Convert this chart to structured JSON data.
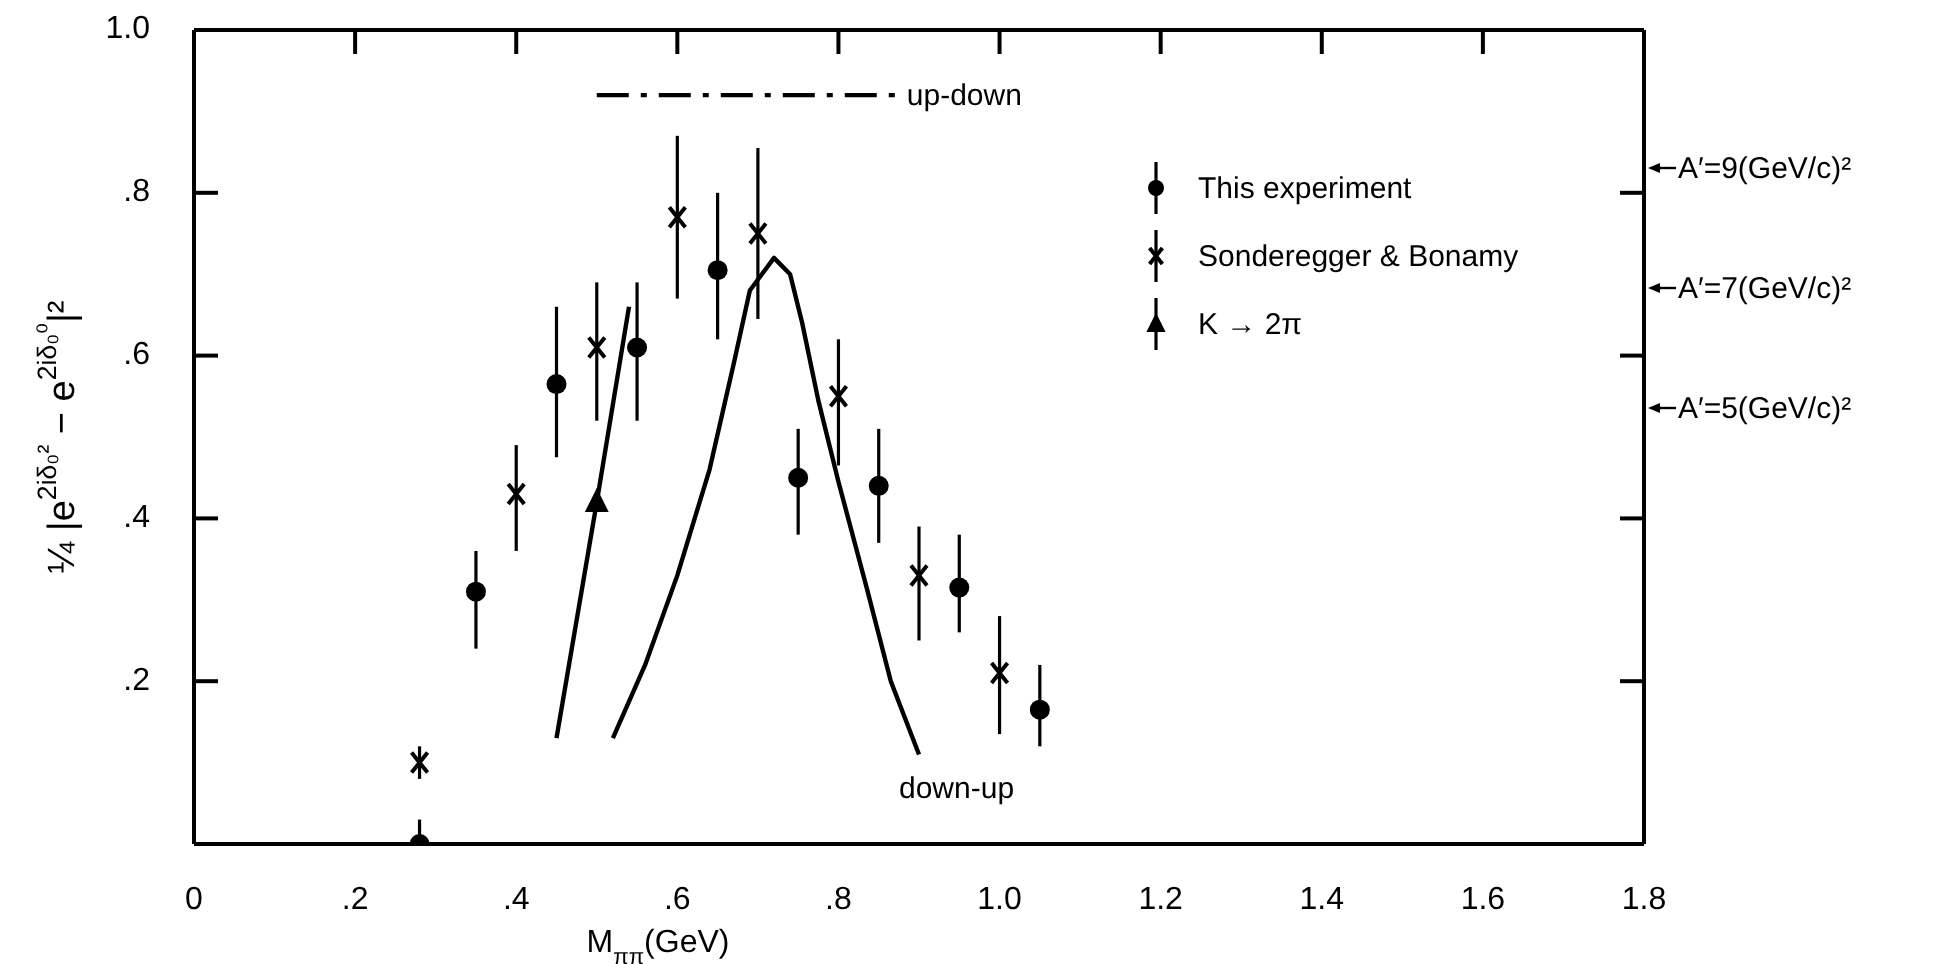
{
  "chart_data": {
    "type": "scatter",
    "xlabel": "M$_{ππ}$(GeV)",
    "ylabel": "¼ |e$^{2iδ₀²}$ − e$^{2iδ₀⁰}$|²",
    "xlim": [
      0,
      1.8
    ],
    "xticks": [
      0,
      {
        "value": 0.2,
        "label": ".2"
      },
      {
        "value": 0.4,
        "label": ".4"
      },
      {
        "value": 0.6,
        "label": ".6"
      },
      {
        "value": 0.8,
        "label": ".8"
      },
      {
        "value": 1.0,
        "label": "1.0"
      },
      {
        "value": 1.2,
        "label": "1.2"
      },
      {
        "value": 1.4,
        "label": "1.4"
      },
      {
        "value": 1.6,
        "label": "1.6"
      },
      {
        "value": 1.8,
        "label": "1.8"
      }
    ],
    "ylim": [
      0,
      1
    ],
    "yticks": [
      {
        "value": 0.2,
        "label": ".2"
      },
      {
        "value": 0.4,
        "label": ".4"
      },
      {
        "value": 0.6,
        "label": ".6"
      },
      {
        "value": 0.8,
        "label": ".8"
      },
      {
        "value": 1.0,
        "label": "1.0"
      }
    ],
    "legend": "top right",
    "series": [
      {
        "name": "This experiment",
        "marker": "circle",
        "color": "#000000",
        "x": [
          0.28,
          0.35,
          0.45,
          0.55,
          0.65,
          0.75,
          0.85,
          0.95,
          1.05
        ],
        "values": [
          0.0,
          0.31,
          0.565,
          0.61,
          0.705,
          0.45,
          0.44,
          0.315,
          0.165
        ],
        "errors": [
          [
            0,
            0.03
          ],
          [
            0.24,
            0.36
          ],
          [
            0.475,
            0.66
          ],
          [
            0.52,
            0.69
          ],
          [
            0.62,
            0.8
          ],
          [
            0.38,
            0.51
          ],
          [
            0.37,
            0.51
          ],
          [
            0.26,
            0.38
          ],
          [
            0.12,
            0.22
          ]
        ]
      },
      {
        "name": "Sonderegger & Bonamy",
        "marker": "cross",
        "color": "#000000",
        "x": [
          0.28,
          0.4,
          0.5,
          0.6,
          0.7,
          0.8,
          0.9,
          1.0
        ],
        "values": [
          0.1,
          0.43,
          0.61,
          0.77,
          0.75,
          0.55,
          0.33,
          0.21
        ],
        "errors": [
          [
            0.08,
            0.12
          ],
          [
            0.36,
            0.49
          ],
          [
            0.52,
            0.69
          ],
          [
            0.67,
            0.87
          ],
          [
            0.645,
            0.855
          ],
          [
            0.465,
            0.62
          ],
          [
            0.25,
            0.39
          ],
          [
            0.135,
            0.28
          ]
        ]
      },
      {
        "name": "K → 2π",
        "marker": "triangle",
        "color": "#000000",
        "x": [
          0.5
        ],
        "values": [
          0.42
        ]
      },
      {
        "type": "line",
        "marker": "none",
        "line_style": "solid",
        "color": "#000000",
        "x": [
          0.45,
          0.5,
          0.54
        ],
        "values": [
          0.13,
          0.42,
          0.66
        ]
      },
      {
        "name": "down-up",
        "type": "line",
        "marker": "none",
        "line_style": "solid",
        "color": "#000000",
        "x": [
          0.52,
          0.56,
          0.6,
          0.64,
          0.67,
          0.69,
          0.72,
          0.74,
          0.755,
          0.775,
          0.8,
          0.835,
          0.865,
          0.9
        ],
        "values": [
          0.13,
          0.22,
          0.33,
          0.46,
          0.59,
          0.68,
          0.72,
          0.7,
          0.64,
          0.545,
          0.445,
          0.315,
          0.2,
          0.11
        ]
      },
      {
        "name": "up-down",
        "type": "line",
        "marker": "none",
        "line_style": "dashed",
        "color": "#000000",
        "x": [
          0.5,
          0.87
        ],
        "values": [
          0.92,
          0.92
        ]
      }
    ],
    "annotations": [
      "A′=9(GeV/c)²",
      "A′=7(GeV/c)²",
      "A′=5(GeV/c)²"
    ]
  }
}
